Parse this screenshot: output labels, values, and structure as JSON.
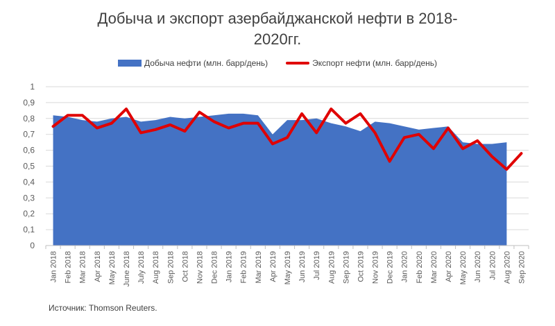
{
  "chart_data": {
    "type": "area",
    "title_lines": [
      "Добыча и экспорт азербайджанской нефти в 2018-",
      "2020гг."
    ],
    "categories": [
      "Jan 2018",
      "Feb 2018",
      "Mar 2018",
      "Apr 2018",
      "May 2018",
      "June 2018",
      "July 2018",
      "Aug 2018",
      "Sep 2018",
      "Oct 2018",
      "Nov 2018",
      "Dec 2018",
      "Jan 2019",
      "Feb 2019",
      "Mar 2019",
      "Apr 2019",
      "May 2019",
      "Jun 2019",
      "Jul 2019",
      "Aug 2019",
      "Sep 2019",
      "Oct 2019",
      "Nov 2019",
      "Dec 2019",
      "Jan 2020",
      "Feb 2020",
      "Mar 2020",
      "Apr 2020",
      "May 2020",
      "Jun 2020",
      "Jul 2020",
      "Aug 2020",
      "Sep 2020"
    ],
    "series": [
      {
        "name": "Добыча нефти (млн. барр/день)",
        "kind": "area",
        "color": "#4472c4",
        "values": [
          0.82,
          0.81,
          0.79,
          0.78,
          0.8,
          0.81,
          0.78,
          0.79,
          0.81,
          0.8,
          0.81,
          0.82,
          0.83,
          0.83,
          0.82,
          0.7,
          0.79,
          0.79,
          0.8,
          0.77,
          0.75,
          0.72,
          0.78,
          0.77,
          0.75,
          0.73,
          0.74,
          0.75,
          0.65,
          0.64,
          0.64,
          0.65,
          null
        ]
      },
      {
        "name": "Экспорт нефти (млн. барр/день)",
        "kind": "line",
        "color": "#e00000",
        "values": [
          0.75,
          0.82,
          0.82,
          0.74,
          0.77,
          0.86,
          0.71,
          0.73,
          0.76,
          0.72,
          0.84,
          0.78,
          0.74,
          0.77,
          0.77,
          0.64,
          0.68,
          0.83,
          0.71,
          0.86,
          0.77,
          0.83,
          0.71,
          0.53,
          0.68,
          0.7,
          0.61,
          0.74,
          0.61,
          0.66,
          0.56,
          0.48,
          0.58
        ]
      }
    ],
    "ylim": [
      0,
      1
    ],
    "yticks": [
      "0",
      "0,1",
      "0,2",
      "0,3",
      "0,4",
      "0,5",
      "0,6",
      "0,7",
      "0,8",
      "0,9",
      "1"
    ],
    "grid": true,
    "legend_position": "top",
    "source": "Источник: Thomson Reuters."
  }
}
